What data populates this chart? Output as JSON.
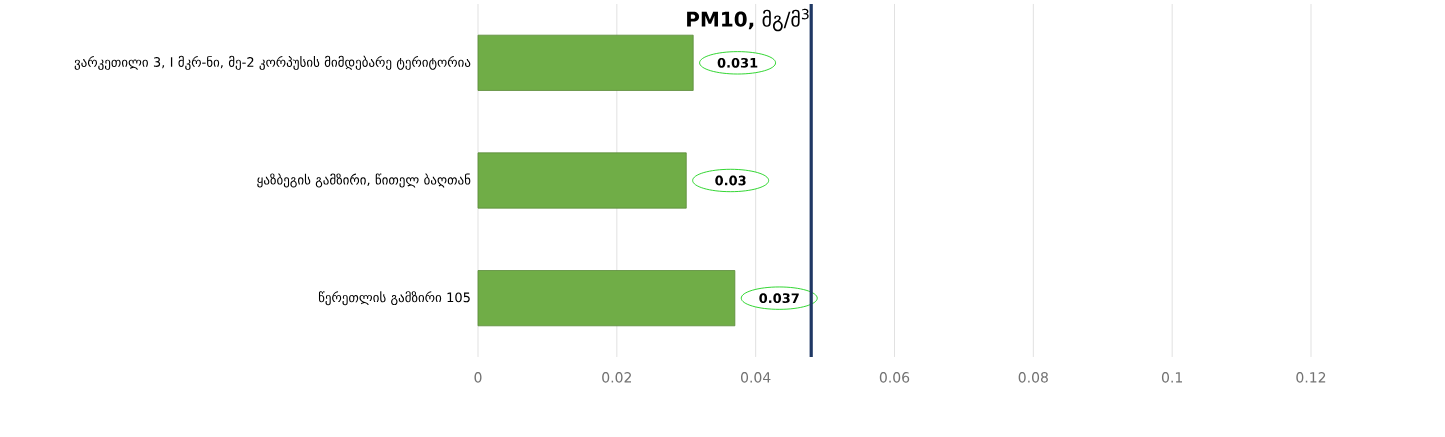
{
  "chart_data": {
    "type": "bar",
    "orientation": "horizontal",
    "title": "**PM10,** მგ/მ$^{3}$",
    "categories": [
      "ვარკეთილი 3, I მკრ-ნი, მე-2 კორპუსის მიმდებარე ტერიტორია",
      "ყაზბეგის გამზირი, წითელ ბაღთან",
      "წერეთლის გამზირი 105"
    ],
    "values": [
      0.031,
      0.03,
      0.037
    ],
    "color": "#70ad47",
    "data_labels": true,
    "xlim": [
      0,
      0.12
    ],
    "xticks": [
      0,
      0.02,
      0.04,
      0.06,
      0.08,
      0.1,
      0.12
    ],
    "grid": "x",
    "ref_lines": [
      {
        "axis": "x",
        "value": 0.048,
        "color": "#1f3864"
      }
    ]
  }
}
